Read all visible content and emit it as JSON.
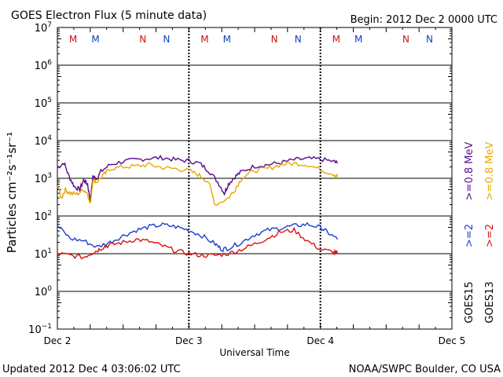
{
  "header": {
    "title": "GOES Electron Flux (5 minute data)",
    "begin": "Begin: 2012 Dec 2 0000 UTC"
  },
  "footer": {
    "updated": "Updated 2012 Dec  4 03:06:02 UTC",
    "credit": "NOAA/SWPC Boulder, CO USA"
  },
  "chart_data": {
    "type": "line",
    "title": "GOES Electron Flux (5 minute data)",
    "xlabel": "Universal Time",
    "ylabel": "Particles cm⁻²s⁻¹sr⁻¹",
    "x_unit": "days since 2012 Dec 2 0000 UTC",
    "xlim": [
      0,
      3
    ],
    "ylim": [
      0.1,
      10000000
    ],
    "y_scale": "log",
    "x_ticks": [
      {
        "x": 0,
        "label": "Dec 2"
      },
      {
        "x": 1,
        "label": "Dec 3"
      },
      {
        "x": 2,
        "label": "Dec 4"
      },
      {
        "x": 3,
        "label": "Dec 5"
      }
    ],
    "y_ticks": [
      {
        "exp": -1,
        "base": "10",
        "sup": "−1"
      },
      {
        "exp": 0,
        "base": "10",
        "sup": "0"
      },
      {
        "exp": 1,
        "base": "10",
        "sup": "1"
      },
      {
        "exp": 2,
        "base": "10",
        "sup": "2"
      },
      {
        "exp": 3,
        "base": "10",
        "sup": "3"
      },
      {
        "exp": 4,
        "base": "10",
        "sup": "4"
      },
      {
        "exp": 5,
        "base": "10",
        "sup": "5"
      },
      {
        "exp": 6,
        "base": "10",
        "sup": "6"
      },
      {
        "exp": 7,
        "base": "10",
        "sup": "7"
      }
    ],
    "threshold": 1000,
    "markers": [
      {
        "x": 0.12,
        "label": "M",
        "color": "#d01010"
      },
      {
        "x": 0.29,
        "label": "M",
        "color": "#1040c0"
      },
      {
        "x": 0.65,
        "label": "N",
        "color": "#d01010"
      },
      {
        "x": 0.83,
        "label": "N",
        "color": "#1040c0"
      },
      {
        "x": 1.12,
        "label": "M",
        "color": "#d01010"
      },
      {
        "x": 1.29,
        "label": "M",
        "color": "#1040c0"
      },
      {
        "x": 1.65,
        "label": "N",
        "color": "#d01010"
      },
      {
        "x": 1.83,
        "label": "N",
        "color": "#1040c0"
      },
      {
        "x": 2.12,
        "label": "M",
        "color": "#d01010"
      },
      {
        "x": 2.29,
        "label": "M",
        "color": "#1040c0"
      },
      {
        "x": 2.65,
        "label": "N",
        "color": "#d01010"
      },
      {
        "x": 2.83,
        "label": "N",
        "color": "#1040c0"
      }
    ],
    "series": [
      {
        "name": "GOES15 >=0.8 MeV",
        "color": "#5a0a8c",
        "x": [
          0,
          0.05,
          0.09,
          0.13,
          0.17,
          0.2,
          0.23,
          0.25,
          0.27,
          0.3,
          0.33,
          0.4,
          0.5,
          0.6,
          0.7,
          0.8,
          0.9,
          1.0,
          1.08,
          1.15,
          1.22,
          1.27,
          1.3,
          1.35,
          1.4,
          1.5,
          1.6,
          1.7,
          1.8,
          1.9,
          2.0,
          2.1,
          2.13
        ],
        "values": [
          1900,
          2600,
          1100,
          600,
          500,
          900,
          700,
          250,
          1100,
          1000,
          1500,
          2300,
          2800,
          3100,
          3400,
          3500,
          3100,
          2900,
          2500,
          1600,
          800,
          400,
          700,
          1100,
          1500,
          2100,
          2300,
          2600,
          3100,
          3300,
          3200,
          2800,
          2500
        ]
      },
      {
        "name": "GOES13 >=0.8 MeV",
        "color": "#e8a800",
        "x": [
          0,
          0.03,
          0.06,
          0.1,
          0.15,
          0.2,
          0.23,
          0.25,
          0.27,
          0.3,
          0.35,
          0.4,
          0.5,
          0.6,
          0.7,
          0.8,
          0.9,
          1.0,
          1.08,
          1.15,
          1.2,
          1.3,
          1.35,
          1.4,
          1.5,
          1.6,
          1.7,
          1.8,
          1.9,
          2.0,
          2.1,
          2.13
        ],
        "values": [
          700,
          300,
          500,
          400,
          380,
          500,
          400,
          200,
          900,
          800,
          1200,
          1800,
          2000,
          2100,
          2300,
          1900,
          1800,
          1600,
          1200,
          800,
          200,
          300,
          500,
          1000,
          1600,
          1800,
          2300,
          2500,
          2300,
          1700,
          1300,
          1100
        ]
      },
      {
        "name": "GOES15 >=2 MeV",
        "color": "#1b3ecc",
        "x": [
          0,
          0.1,
          0.2,
          0.3,
          0.4,
          0.5,
          0.6,
          0.7,
          0.8,
          0.9,
          1.0,
          1.1,
          1.2,
          1.25,
          1.3,
          1.4,
          1.5,
          1.6,
          1.7,
          1.8,
          1.9,
          2.0,
          2.05,
          2.13
        ],
        "values": [
          55,
          25,
          22,
          15,
          20,
          30,
          42,
          52,
          58,
          52,
          42,
          30,
          18,
          13,
          14,
          20,
          32,
          42,
          48,
          55,
          60,
          50,
          38,
          24
        ]
      },
      {
        "name": "GOES13 >=2 MeV",
        "color": "#e01010",
        "x": [
          0,
          0.1,
          0.2,
          0.25,
          0.3,
          0.35,
          0.4,
          0.5,
          0.6,
          0.7,
          0.8,
          0.9,
          1.0,
          1.1,
          1.2,
          1.3,
          1.4,
          1.5,
          1.6,
          1.7,
          1.8,
          1.9,
          2.0,
          2.1,
          2.13
        ],
        "values": [
          10,
          9,
          8,
          10,
          12,
          15,
          17,
          20,
          24,
          21,
          16,
          12,
          10,
          9,
          9,
          10,
          13,
          18,
          26,
          38,
          42,
          22,
          13,
          11,
          10
        ]
      }
    ],
    "right_labels": [
      {
        "text": ">=0.8  MeV",
        "color": "#e8a800"
      },
      {
        "text": ">=0.8  MeV",
        "color": "#5a0a8c"
      },
      {
        "text": ">=2",
        "color": "#e01010"
      },
      {
        "text": ">=2",
        "color": "#1b3ecc"
      },
      {
        "text": "GOES13",
        "color": "#000000"
      },
      {
        "text": "GOES15",
        "color": "#000000"
      }
    ]
  }
}
